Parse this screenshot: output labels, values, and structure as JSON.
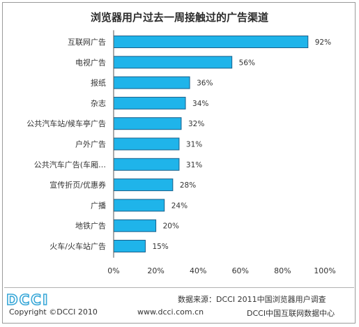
{
  "title": "浏览器用户过去一周接触过的广告渠道",
  "chart_data": {
    "type": "bar",
    "orientation": "horizontal",
    "categories": [
      "互联网广告",
      "电视广告",
      "报纸",
      "杂志",
      "公共汽车站/候车亭广告",
      "户外广告",
      "公共汽车广告(车厢…",
      "宣传折页/优惠券",
      "广播",
      "地铁广告",
      "火车/火车站广告"
    ],
    "values": [
      92,
      56,
      36,
      34,
      32,
      31,
      31,
      28,
      24,
      20,
      15
    ],
    "value_labels": [
      "92%",
      "56%",
      "36%",
      "34%",
      "32%",
      "31%",
      "31%",
      "28%",
      "24%",
      "20%",
      "15%"
    ],
    "xlim": [
      0,
      100
    ],
    "ticks": [
      "0%",
      "20%",
      "40%",
      "60%",
      "80%",
      "100%"
    ],
    "tick_values": [
      0,
      20,
      40,
      60,
      80,
      100
    ],
    "grid": false,
    "bar_color": "#1fb4ea",
    "bar_edge_color": "#1a5f8a"
  },
  "footer": {
    "source": "数据来源：DCCI 2011中国浏览器用户调查",
    "copyright": "Copyright ©DCCI 2010",
    "website": "www.dcci.com.cn",
    "org": "DCCI中国互联网数据中心",
    "logo_text": "DCCI"
  }
}
